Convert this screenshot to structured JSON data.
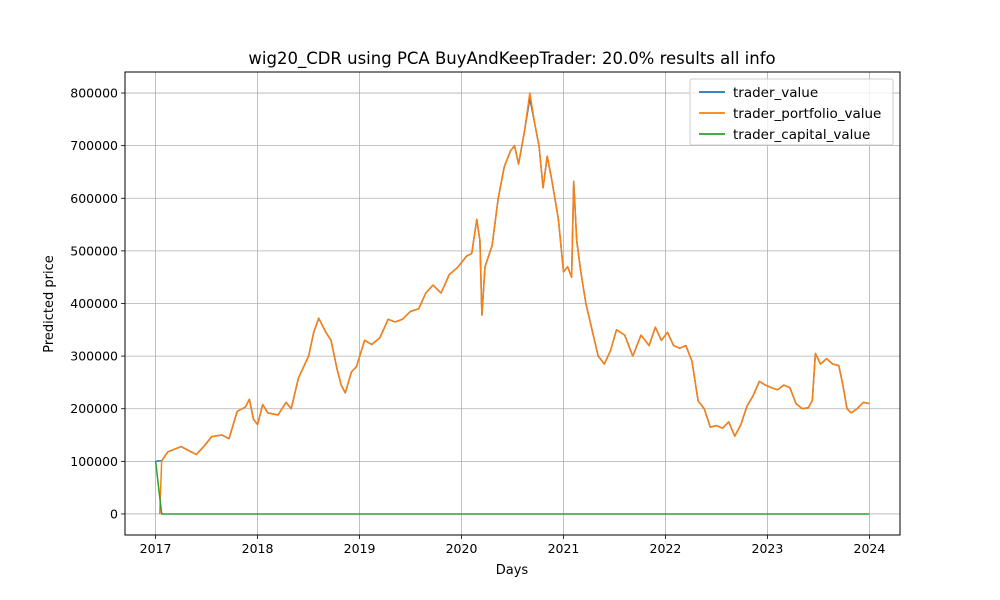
{
  "chart_data": {
    "type": "line",
    "title": "wig20_CDR using PCA BuyAndKeepTrader: 20.0% results all info",
    "xlabel": "Days",
    "ylabel": "Predicted price",
    "x_ticks": [
      "2017",
      "2018",
      "2019",
      "2020",
      "2021",
      "2022",
      "2023",
      "2024"
    ],
    "y_ticks": [
      "0",
      "100000",
      "200000",
      "300000",
      "400000",
      "500000",
      "600000",
      "700000",
      "800000"
    ],
    "xlim": [
      2016.7,
      2024.3
    ],
    "ylim": [
      -40000,
      840000
    ],
    "grid": true,
    "legend_position": "top-right",
    "series": [
      {
        "name": "trader_value",
        "color": "#1f77b4",
        "points": [
          [
            2017.0,
            100000
          ],
          [
            2017.06,
            101000
          ],
          [
            2017.12,
            118000
          ],
          [
            2017.25,
            128000
          ],
          [
            2017.35,
            118000
          ],
          [
            2017.4,
            113000
          ],
          [
            2017.48,
            130000
          ],
          [
            2017.55,
            147000
          ],
          [
            2017.65,
            150000
          ],
          [
            2017.72,
            143000
          ],
          [
            2017.8,
            195000
          ],
          [
            2017.88,
            203000
          ],
          [
            2017.92,
            218000
          ],
          [
            2017.96,
            180000
          ],
          [
            2018.0,
            170000
          ],
          [
            2018.05,
            208000
          ],
          [
            2018.1,
            192000
          ],
          [
            2018.2,
            188000
          ],
          [
            2018.28,
            212000
          ],
          [
            2018.33,
            200000
          ],
          [
            2018.4,
            258000
          ],
          [
            2018.5,
            300000
          ],
          [
            2018.55,
            345000
          ],
          [
            2018.6,
            372000
          ],
          [
            2018.67,
            345000
          ],
          [
            2018.72,
            330000
          ],
          [
            2018.78,
            275000
          ],
          [
            2018.82,
            245000
          ],
          [
            2018.86,
            230000
          ],
          [
            2018.92,
            270000
          ],
          [
            2018.97,
            280000
          ],
          [
            2019.05,
            330000
          ],
          [
            2019.12,
            322000
          ],
          [
            2019.2,
            335000
          ],
          [
            2019.28,
            370000
          ],
          [
            2019.35,
            365000
          ],
          [
            2019.42,
            370000
          ],
          [
            2019.5,
            385000
          ],
          [
            2019.58,
            390000
          ],
          [
            2019.65,
            420000
          ],
          [
            2019.72,
            435000
          ],
          [
            2019.8,
            420000
          ],
          [
            2019.88,
            455000
          ],
          [
            2019.96,
            468000
          ],
          [
            2020.05,
            490000
          ],
          [
            2020.1,
            495000
          ],
          [
            2020.15,
            560000
          ],
          [
            2020.18,
            520000
          ],
          [
            2020.2,
            378000
          ],
          [
            2020.23,
            470000
          ],
          [
            2020.3,
            510000
          ],
          [
            2020.36,
            600000
          ],
          [
            2020.42,
            660000
          ],
          [
            2020.48,
            690000
          ],
          [
            2020.52,
            700000
          ],
          [
            2020.56,
            665000
          ],
          [
            2020.62,
            730000
          ],
          [
            2020.67,
            790000
          ],
          [
            2020.72,
            740000
          ],
          [
            2020.76,
            700000
          ],
          [
            2020.8,
            620000
          ],
          [
            2020.84,
            680000
          ],
          [
            2020.88,
            640000
          ],
          [
            2020.95,
            560000
          ],
          [
            2021.0,
            460000
          ],
          [
            2021.04,
            470000
          ],
          [
            2021.08,
            450000
          ],
          [
            2021.1,
            632000
          ],
          [
            2021.13,
            520000
          ],
          [
            2021.17,
            460000
          ],
          [
            2021.22,
            400000
          ],
          [
            2021.28,
            350000
          ],
          [
            2021.34,
            300000
          ],
          [
            2021.4,
            285000
          ],
          [
            2021.46,
            310000
          ],
          [
            2021.52,
            350000
          ],
          [
            2021.6,
            340000
          ],
          [
            2021.68,
            300000
          ],
          [
            2021.76,
            340000
          ],
          [
            2021.84,
            320000
          ],
          [
            2021.9,
            355000
          ],
          [
            2021.96,
            330000
          ],
          [
            2022.02,
            345000
          ],
          [
            2022.08,
            320000
          ],
          [
            2022.14,
            315000
          ],
          [
            2022.2,
            320000
          ],
          [
            2022.26,
            290000
          ],
          [
            2022.32,
            215000
          ],
          [
            2022.38,
            200000
          ],
          [
            2022.44,
            165000
          ],
          [
            2022.5,
            168000
          ],
          [
            2022.56,
            163000
          ],
          [
            2022.62,
            175000
          ],
          [
            2022.68,
            148000
          ],
          [
            2022.74,
            170000
          ],
          [
            2022.8,
            205000
          ],
          [
            2022.86,
            225000
          ],
          [
            2022.92,
            252000
          ],
          [
            2022.98,
            245000
          ],
          [
            2023.04,
            240000
          ],
          [
            2023.1,
            236000
          ],
          [
            2023.16,
            245000
          ],
          [
            2023.22,
            240000
          ],
          [
            2023.28,
            210000
          ],
          [
            2023.34,
            200000
          ],
          [
            2023.4,
            202000
          ],
          [
            2023.44,
            215000
          ],
          [
            2023.47,
            305000
          ],
          [
            2023.52,
            285000
          ],
          [
            2023.58,
            295000
          ],
          [
            2023.64,
            285000
          ],
          [
            2023.7,
            282000
          ],
          [
            2023.74,
            245000
          ],
          [
            2023.78,
            200000
          ],
          [
            2023.82,
            192000
          ],
          [
            2023.88,
            200000
          ],
          [
            2023.94,
            212000
          ],
          [
            2024.0,
            210000
          ]
        ]
      },
      {
        "name": "trader_portfolio_value",
        "color": "#ff7f0e",
        "points": [
          [
            2017.04,
            0
          ],
          [
            2017.06,
            101000
          ],
          [
            2017.12,
            118000
          ],
          [
            2017.25,
            128000
          ],
          [
            2017.35,
            118000
          ],
          [
            2017.4,
            113000
          ],
          [
            2017.48,
            130000
          ],
          [
            2017.55,
            147000
          ],
          [
            2017.65,
            150000
          ],
          [
            2017.72,
            143000
          ],
          [
            2017.8,
            195000
          ],
          [
            2017.88,
            203000
          ],
          [
            2017.92,
            218000
          ],
          [
            2017.96,
            180000
          ],
          [
            2018.0,
            170000
          ],
          [
            2018.05,
            208000
          ],
          [
            2018.1,
            192000
          ],
          [
            2018.2,
            188000
          ],
          [
            2018.28,
            212000
          ],
          [
            2018.33,
            200000
          ],
          [
            2018.4,
            258000
          ],
          [
            2018.5,
            300000
          ],
          [
            2018.55,
            345000
          ],
          [
            2018.6,
            372000
          ],
          [
            2018.67,
            345000
          ],
          [
            2018.72,
            330000
          ],
          [
            2018.78,
            275000
          ],
          [
            2018.82,
            245000
          ],
          [
            2018.86,
            230000
          ],
          [
            2018.92,
            270000
          ],
          [
            2018.97,
            280000
          ],
          [
            2019.05,
            330000
          ],
          [
            2019.12,
            322000
          ],
          [
            2019.2,
            335000
          ],
          [
            2019.28,
            370000
          ],
          [
            2019.35,
            365000
          ],
          [
            2019.42,
            370000
          ],
          [
            2019.5,
            385000
          ],
          [
            2019.58,
            390000
          ],
          [
            2019.65,
            420000
          ],
          [
            2019.72,
            435000
          ],
          [
            2019.8,
            420000
          ],
          [
            2019.88,
            455000
          ],
          [
            2019.96,
            468000
          ],
          [
            2020.05,
            490000
          ],
          [
            2020.1,
            495000
          ],
          [
            2020.15,
            560000
          ],
          [
            2020.18,
            520000
          ],
          [
            2020.2,
            378000
          ],
          [
            2020.23,
            470000
          ],
          [
            2020.3,
            510000
          ],
          [
            2020.36,
            600000
          ],
          [
            2020.42,
            660000
          ],
          [
            2020.48,
            690000
          ],
          [
            2020.52,
            700000
          ],
          [
            2020.56,
            665000
          ],
          [
            2020.62,
            730000
          ],
          [
            2020.67,
            800000
          ],
          [
            2020.72,
            740000
          ],
          [
            2020.76,
            700000
          ],
          [
            2020.8,
            620000
          ],
          [
            2020.84,
            680000
          ],
          [
            2020.88,
            640000
          ],
          [
            2020.95,
            560000
          ],
          [
            2021.0,
            460000
          ],
          [
            2021.04,
            470000
          ],
          [
            2021.08,
            450000
          ],
          [
            2021.1,
            632000
          ],
          [
            2021.13,
            520000
          ],
          [
            2021.17,
            460000
          ],
          [
            2021.22,
            400000
          ],
          [
            2021.28,
            350000
          ],
          [
            2021.34,
            300000
          ],
          [
            2021.4,
            285000
          ],
          [
            2021.46,
            310000
          ],
          [
            2021.52,
            350000
          ],
          [
            2021.6,
            340000
          ],
          [
            2021.68,
            300000
          ],
          [
            2021.76,
            340000
          ],
          [
            2021.84,
            320000
          ],
          [
            2021.9,
            355000
          ],
          [
            2021.96,
            330000
          ],
          [
            2022.02,
            345000
          ],
          [
            2022.08,
            320000
          ],
          [
            2022.14,
            315000
          ],
          [
            2022.2,
            320000
          ],
          [
            2022.26,
            290000
          ],
          [
            2022.32,
            215000
          ],
          [
            2022.38,
            200000
          ],
          [
            2022.44,
            165000
          ],
          [
            2022.5,
            168000
          ],
          [
            2022.56,
            163000
          ],
          [
            2022.62,
            175000
          ],
          [
            2022.68,
            148000
          ],
          [
            2022.74,
            170000
          ],
          [
            2022.8,
            205000
          ],
          [
            2022.86,
            225000
          ],
          [
            2022.92,
            252000
          ],
          [
            2022.98,
            245000
          ],
          [
            2023.04,
            240000
          ],
          [
            2023.1,
            236000
          ],
          [
            2023.16,
            245000
          ],
          [
            2023.22,
            240000
          ],
          [
            2023.28,
            210000
          ],
          [
            2023.34,
            200000
          ],
          [
            2023.4,
            202000
          ],
          [
            2023.44,
            215000
          ],
          [
            2023.47,
            305000
          ],
          [
            2023.52,
            285000
          ],
          [
            2023.58,
            295000
          ],
          [
            2023.64,
            285000
          ],
          [
            2023.7,
            282000
          ],
          [
            2023.74,
            245000
          ],
          [
            2023.78,
            200000
          ],
          [
            2023.82,
            192000
          ],
          [
            2023.88,
            200000
          ],
          [
            2023.94,
            212000
          ],
          [
            2024.0,
            210000
          ]
        ]
      },
      {
        "name": "trader_capital_value",
        "color": "#2ca02c",
        "points": [
          [
            2017.0,
            100000
          ],
          [
            2017.06,
            0
          ],
          [
            2024.0,
            0
          ]
        ]
      }
    ]
  }
}
